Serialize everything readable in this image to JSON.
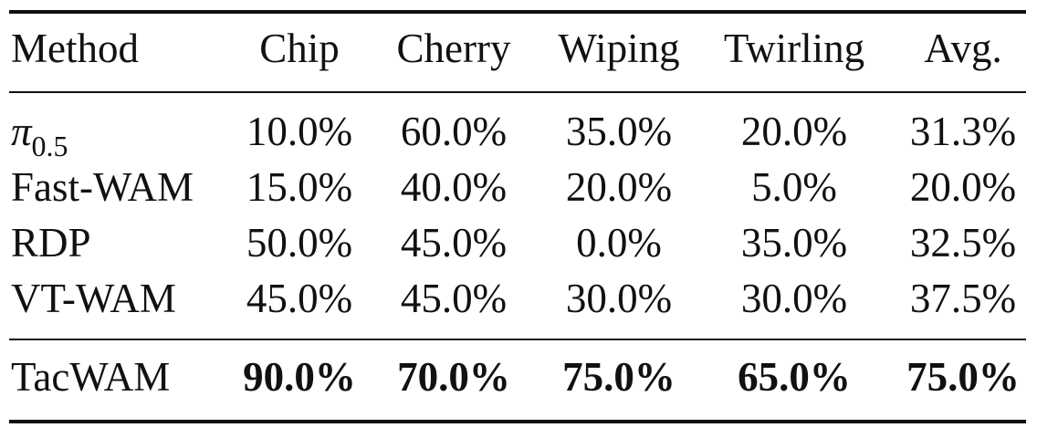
{
  "table": {
    "header": [
      "Method",
      "Chip",
      "Cherry",
      "Wiping",
      "Twirling",
      "Avg."
    ],
    "rows": [
      [
        {
          "base": "π",
          "sub": "0.5"
        },
        "10.0%",
        "60.0%",
        "35.0%",
        "20.0%",
        "31.3%"
      ],
      [
        "Fast-WAM",
        "15.0%",
        "40.0%",
        "20.0%",
        "5.0%",
        "20.0%"
      ],
      [
        "RDP",
        "50.0%",
        "45.0%",
        "0.0%",
        "35.0%",
        "32.5%"
      ],
      [
        "VT-WAM",
        "45.0%",
        "45.0%",
        "30.0%",
        "30.0%",
        "37.5%"
      ]
    ],
    "highlight_row": [
      "TacWAM",
      "90.0%",
      "70.0%",
      "75.0%",
      "65.0%",
      "75.0%"
    ]
  }
}
